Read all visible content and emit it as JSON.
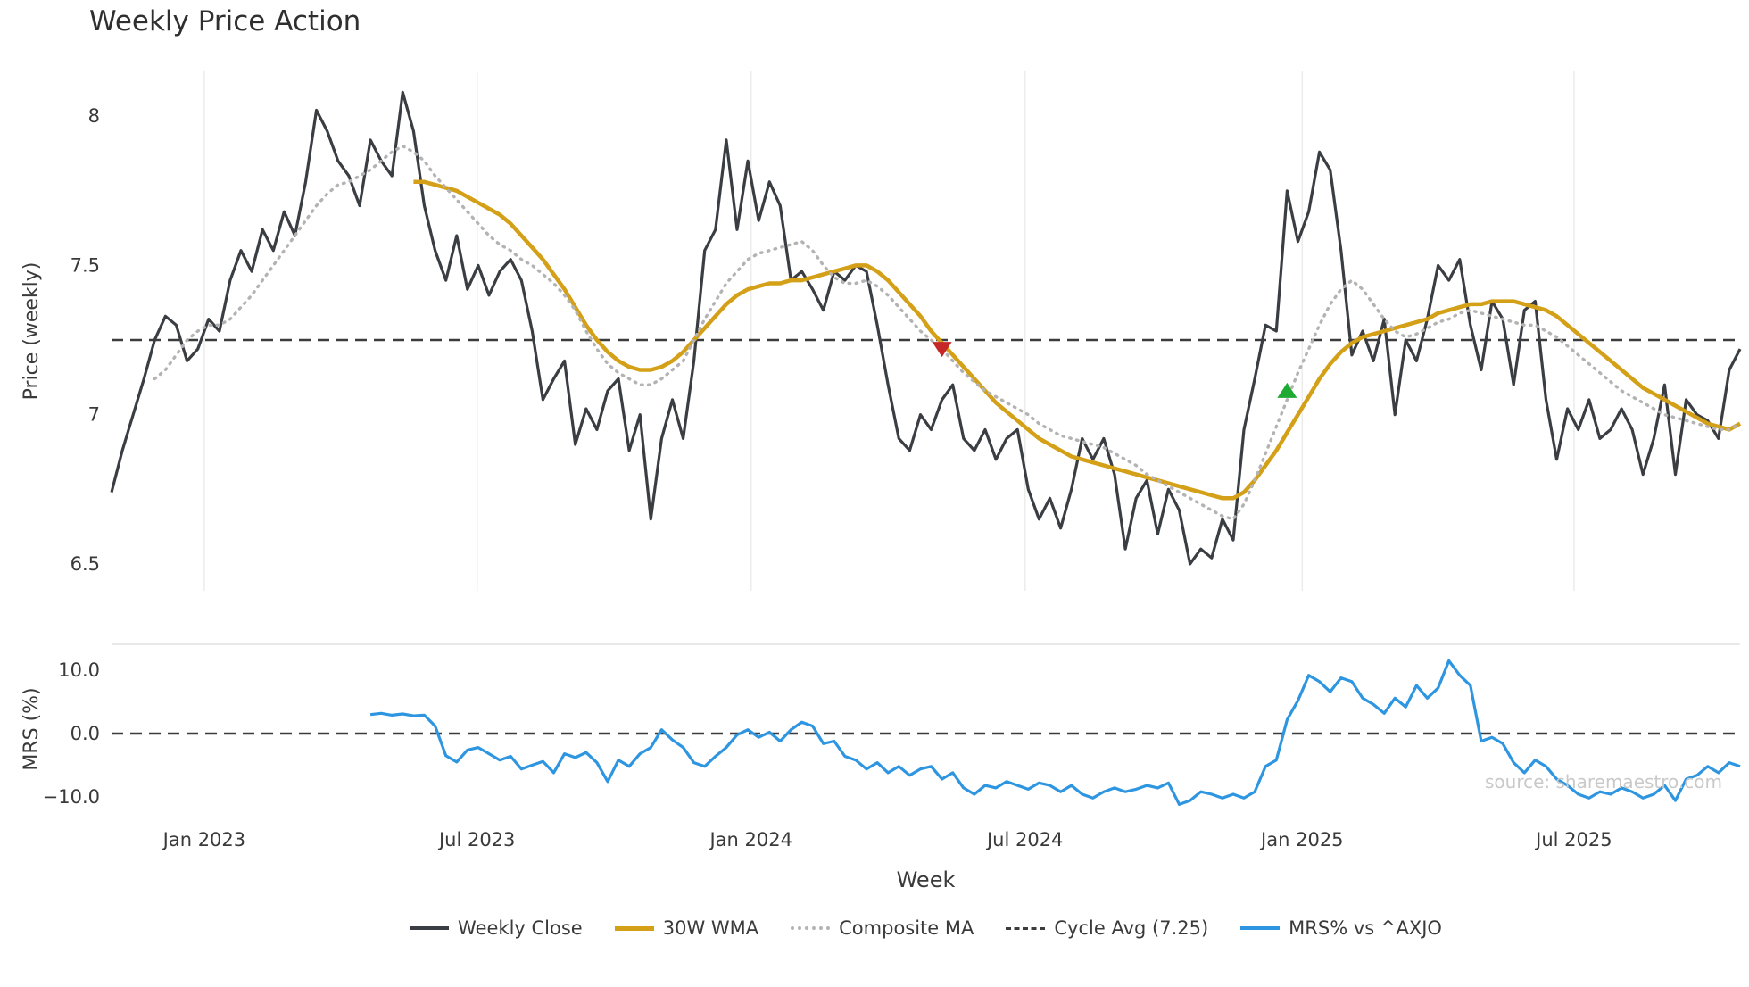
{
  "chart_data": {
    "type": "line",
    "title": "Weekly Price Action",
    "xlabel": "Week",
    "source": "source: sharemaestro.com",
    "weeks_count": 152,
    "x_ticks": [
      {
        "week": 8.6,
        "label": "Jan 2023"
      },
      {
        "week": 33.9,
        "label": "Jul 2023"
      },
      {
        "week": 59.3,
        "label": "Jan 2024"
      },
      {
        "week": 84.7,
        "label": "Jul 2024"
      },
      {
        "week": 110.4,
        "label": "Jan 2025"
      },
      {
        "week": 135.6,
        "label": "Jul 2025"
      }
    ],
    "panels": {
      "price": {
        "ylabel": "Price (weekly)",
        "ylim": [
          6.41,
          8.15
        ],
        "yticks": [
          {
            "v": 8,
            "label": "8"
          },
          {
            "v": 7.5,
            "label": "7.5"
          },
          {
            "v": 7,
            "label": "7"
          },
          {
            "v": 6.5,
            "label": "6.5"
          }
        ],
        "cycle_avg": 7.25,
        "grid": "vertical-light",
        "series": {
          "weekly_close": {
            "name": "Weekly Close",
            "color": "#3a3e42",
            "style": "solid",
            "values": [
              6.74,
              6.88,
              7.0,
              7.12,
              7.25,
              7.33,
              7.3,
              7.18,
              7.22,
              7.32,
              7.28,
              7.45,
              7.55,
              7.48,
              7.62,
              7.55,
              7.68,
              7.6,
              7.78,
              8.02,
              7.95,
              7.85,
              7.8,
              7.7,
              7.92,
              7.85,
              7.8,
              8.08,
              7.95,
              7.7,
              7.55,
              7.45,
              7.6,
              7.42,
              7.5,
              7.4,
              7.48,
              7.52,
              7.45,
              7.28,
              7.05,
              7.12,
              7.18,
              6.9,
              7.02,
              6.95,
              7.08,
              7.12,
              6.88,
              7.0,
              6.65,
              6.92,
              7.05,
              6.92,
              7.18,
              7.55,
              7.62,
              7.92,
              7.62,
              7.85,
              7.65,
              7.78,
              7.7,
              7.45,
              7.48,
              7.42,
              7.35,
              7.48,
              7.45,
              7.5,
              7.48,
              7.3,
              7.1,
              6.92,
              6.88,
              7.0,
              6.95,
              7.05,
              7.1,
              6.92,
              6.88,
              6.95,
              6.85,
              6.92,
              6.95,
              6.75,
              6.65,
              6.72,
              6.62,
              6.75,
              6.92,
              6.85,
              6.92,
              6.8,
              6.55,
              6.72,
              6.78,
              6.6,
              6.75,
              6.68,
              6.5,
              6.55,
              6.52,
              6.65,
              6.58,
              6.95,
              7.12,
              7.3,
              7.28,
              7.75,
              7.58,
              7.68,
              7.88,
              7.82,
              7.55,
              7.2,
              7.28,
              7.18,
              7.32,
              7.0,
              7.25,
              7.18,
              7.32,
              7.5,
              7.45,
              7.52,
              7.3,
              7.15,
              7.38,
              7.32,
              7.1,
              7.35,
              7.38,
              7.05,
              6.85,
              7.02,
              6.95,
              7.05,
              6.92,
              6.95,
              7.02,
              6.95,
              6.8,
              6.92,
              7.1,
              6.8,
              7.05,
              7.0,
              6.98,
              6.92,
              7.15,
              7.22
            ]
          },
          "wma_30w": {
            "name": "30W WMA",
            "color": "#d4a017",
            "style": "solid",
            "values": [
              null,
              null,
              null,
              null,
              null,
              null,
              null,
              null,
              null,
              null,
              null,
              null,
              null,
              null,
              null,
              null,
              null,
              null,
              null,
              null,
              null,
              null,
              null,
              null,
              null,
              null,
              null,
              null,
              7.78,
              7.78,
              7.77,
              7.76,
              7.75,
              7.73,
              7.71,
              7.69,
              7.67,
              7.64,
              7.6,
              7.56,
              7.52,
              7.47,
              7.42,
              7.36,
              7.3,
              7.25,
              7.21,
              7.18,
              7.16,
              7.15,
              7.15,
              7.16,
              7.18,
              7.21,
              7.25,
              7.29,
              7.33,
              7.37,
              7.4,
              7.42,
              7.43,
              7.44,
              7.44,
              7.45,
              7.45,
              7.46,
              7.47,
              7.48,
              7.49,
              7.5,
              7.5,
              7.48,
              7.45,
              7.41,
              7.37,
              7.33,
              7.28,
              7.24,
              7.2,
              7.16,
              7.12,
              7.08,
              7.04,
              7.01,
              6.98,
              6.95,
              6.92,
              6.9,
              6.88,
              6.86,
              6.85,
              6.84,
              6.83,
              6.82,
              6.81,
              6.8,
              6.79,
              6.78,
              6.77,
              6.76,
              6.75,
              6.74,
              6.73,
              6.72,
              6.72,
              6.74,
              6.78,
              6.83,
              6.88,
              6.94,
              7.0,
              7.06,
              7.12,
              7.17,
              7.21,
              7.24,
              7.26,
              7.27,
              7.28,
              7.29,
              7.3,
              7.31,
              7.32,
              7.34,
              7.35,
              7.36,
              7.37,
              7.37,
              7.38,
              7.38,
              7.38,
              7.37,
              7.36,
              7.35,
              7.33,
              7.3,
              7.27,
              7.24,
              7.21,
              7.18,
              7.15,
              7.12,
              7.09,
              7.07,
              7.05,
              7.03,
              7.01,
              6.99,
              6.97,
              6.96,
              6.95,
              6.97
            ]
          },
          "composite_ma": {
            "name": "Composite MA",
            "color": "#b3b3b3",
            "style": "dotted",
            "values": [
              null,
              null,
              null,
              null,
              7.12,
              7.15,
              7.2,
              7.25,
              7.28,
              7.3,
              7.3,
              7.32,
              7.36,
              7.4,
              7.45,
              7.5,
              7.55,
              7.6,
              7.65,
              7.7,
              7.74,
              7.77,
              7.78,
              7.8,
              7.82,
              7.85,
              7.88,
              7.9,
              7.88,
              7.85,
              7.8,
              7.76,
              7.72,
              7.68,
              7.64,
              7.6,
              7.57,
              7.55,
              7.52,
              7.5,
              7.47,
              7.44,
              7.4,
              7.35,
              7.28,
              7.22,
              7.17,
              7.14,
              7.12,
              7.1,
              7.1,
              7.12,
              7.15,
              7.18,
              7.25,
              7.32,
              7.38,
              7.44,
              7.48,
              7.52,
              7.54,
              7.55,
              7.56,
              7.57,
              7.58,
              7.55,
              7.5,
              7.46,
              7.44,
              7.44,
              7.45,
              7.43,
              7.4,
              7.36,
              7.32,
              7.28,
              7.25,
              7.22,
              7.18,
              7.14,
              7.11,
              7.08,
              7.06,
              7.04,
              7.02,
              7.0,
              6.97,
              6.95,
              6.93,
              6.92,
              6.91,
              6.9,
              6.89,
              6.87,
              6.85,
              6.83,
              6.8,
              6.78,
              6.76,
              6.74,
              6.72,
              6.7,
              6.68,
              6.66,
              6.65,
              6.7,
              6.78,
              6.87,
              6.96,
              7.05,
              7.14,
              7.22,
              7.3,
              7.37,
              7.42,
              7.45,
              7.42,
              7.37,
              7.32,
              7.28,
              7.26,
              7.27,
              7.29,
              7.31,
              7.32,
              7.34,
              7.35,
              7.34,
              7.33,
              7.32,
              7.31,
              7.3,
              7.3,
              7.28,
              7.26,
              7.23,
              7.2,
              7.17,
              7.14,
              7.11,
              7.08,
              7.06,
              7.04,
              7.02,
              7.0,
              6.99,
              6.98,
              6.97,
              6.96,
              6.95,
              6.95,
              6.97
            ]
          }
        },
        "markers": [
          {
            "kind": "sell-signal",
            "shape": "triangle-down",
            "color": "#c62828",
            "week": 77,
            "value": 7.22
          },
          {
            "kind": "buy-signal",
            "shape": "triangle-up",
            "color": "#1faa34",
            "week": 109,
            "value": 7.08
          }
        ]
      },
      "mrs": {
        "ylabel": "MRS (%)",
        "ylim": [
          -12.7,
          14.1
        ],
        "yticks": [
          {
            "v": 10,
            "label": "10.0"
          },
          {
            "v": 0,
            "label": "0.0"
          },
          {
            "v": -10,
            "label": "−10.0"
          }
        ],
        "zero_line": 0,
        "series": {
          "mrs_pct": {
            "name": "MRS% vs ^AXJO",
            "color": "#2e96e0",
            "style": "solid",
            "values": [
              null,
              null,
              null,
              null,
              null,
              null,
              null,
              null,
              null,
              null,
              null,
              null,
              null,
              null,
              null,
              null,
              null,
              null,
              null,
              null,
              null,
              null,
              null,
              null,
              3.0,
              3.2,
              2.9,
              3.1,
              2.8,
              2.9,
              1.2,
              -3.5,
              -4.5,
              -2.6,
              -2.2,
              -3.2,
              -4.2,
              -3.6,
              -5.6,
              -5.0,
              -4.4,
              -6.2,
              -3.2,
              -3.8,
              -3.0,
              -4.6,
              -7.6,
              -4.2,
              -5.2,
              -3.2,
              -2.2,
              0.6,
              -1.0,
              -2.2,
              -4.6,
              -5.2,
              -3.6,
              -2.2,
              -0.2,
              0.6,
              -0.6,
              0.2,
              -1.2,
              0.6,
              1.8,
              1.2,
              -1.6,
              -1.2,
              -3.6,
              -4.2,
              -5.6,
              -4.6,
              -6.2,
              -5.2,
              -6.6,
              -5.6,
              -5.2,
              -7.2,
              -6.2,
              -8.6,
              -9.6,
              -8.2,
              -8.6,
              -7.6,
              -8.2,
              -8.8,
              -7.8,
              -8.2,
              -9.2,
              -8.2,
              -9.6,
              -10.2,
              -9.2,
              -8.6,
              -9.2,
              -8.8,
              -8.2,
              -8.6,
              -7.8,
              -11.2,
              -10.6,
              -9.2,
              -9.6,
              -10.2,
              -9.6,
              -10.2,
              -9.2,
              -5.2,
              -4.2,
              2.2,
              5.2,
              9.2,
              8.2,
              6.6,
              8.8,
              8.2,
              5.6,
              4.6,
              3.2,
              5.6,
              4.2,
              7.6,
              5.6,
              7.2,
              11.5,
              9.2,
              7.6,
              -1.2,
              -0.6,
              -1.6,
              -4.6,
              -6.2,
              -4.2,
              -5.2,
              -7.2,
              -8.2,
              -9.6,
              -10.2,
              -9.2,
              -9.6,
              -8.6,
              -9.2,
              -10.2,
              -9.6,
              -8.2,
              -10.6,
              -7.2,
              -6.6,
              -5.2,
              -6.2,
              -4.6,
              -5.2
            ]
          }
        }
      }
    },
    "legend": [
      {
        "label": "Weekly Close",
        "color": "#3a3e42",
        "style": "solid"
      },
      {
        "label": "30W WMA",
        "color": "#d4a017",
        "style": "solid"
      },
      {
        "label": "Composite MA",
        "color": "#b3b3b3",
        "style": "dotted"
      },
      {
        "label": "Cycle Avg (7.25)",
        "color": "#3c3c3c",
        "style": "dashed"
      },
      {
        "label": "MRS% vs ^AXJO",
        "color": "#2e96e0",
        "style": "solid"
      }
    ],
    "style_colors": {
      "grid": "#ececec",
      "panel_separator": "#e2e2e2",
      "dashed_reference": "#3c3c3c",
      "tick_text": "#3a3a3a",
      "watermark": "#c9c9c9"
    }
  }
}
